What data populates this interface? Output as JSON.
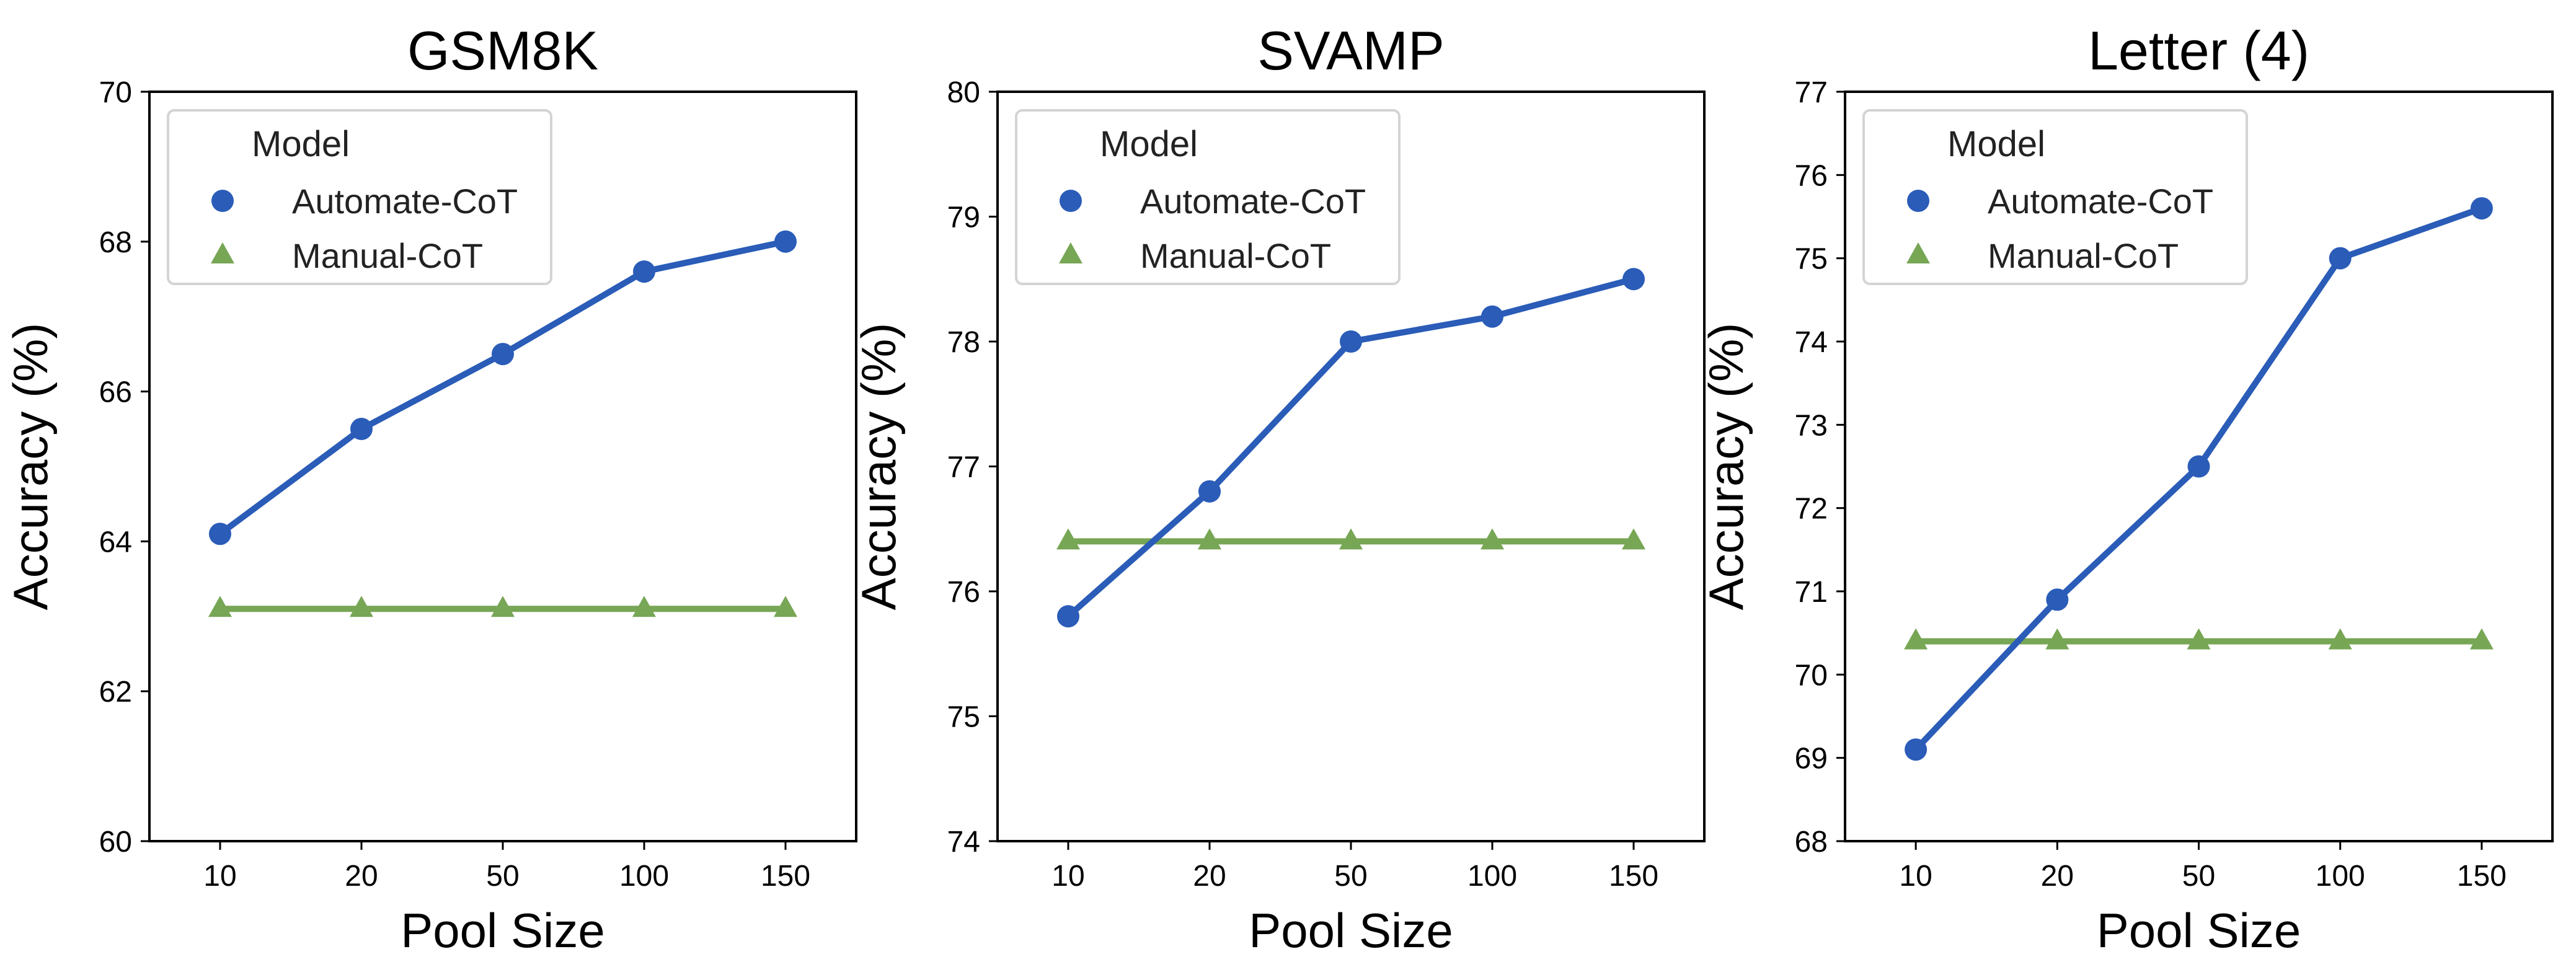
{
  "chart_data": [
    {
      "type": "line",
      "title": "GSM8K",
      "xlabel": "Pool Size",
      "ylabel": "Accuracy (%)",
      "categories": [
        "10",
        "20",
        "50",
        "100",
        "150"
      ],
      "ylim": [
        60,
        70
      ],
      "yticks": [
        60,
        62,
        64,
        66,
        68,
        70
      ],
      "legend": {
        "title": "Model",
        "position": "upper-left"
      },
      "series": [
        {
          "name": "Automate-CoT",
          "marker": "circle",
          "color": "#2a5cb8",
          "values": [
            64.1,
            65.5,
            66.5,
            67.6,
            68.0
          ]
        },
        {
          "name": "Manual-CoT",
          "marker": "triangle",
          "color": "#77a655",
          "values": [
            63.1,
            63.1,
            63.1,
            63.1,
            63.1
          ]
        }
      ]
    },
    {
      "type": "line",
      "title": "SVAMP",
      "xlabel": "Pool Size",
      "ylabel": "Accuracy (%)",
      "categories": [
        "10",
        "20",
        "50",
        "100",
        "150"
      ],
      "ylim": [
        74,
        80
      ],
      "yticks": [
        74,
        75,
        76,
        77,
        78,
        79,
        80
      ],
      "legend": {
        "title": "Model",
        "position": "upper-left"
      },
      "series": [
        {
          "name": "Automate-CoT",
          "marker": "circle",
          "color": "#2a5cb8",
          "values": [
            75.8,
            76.8,
            78.0,
            78.2,
            78.5
          ]
        },
        {
          "name": "Manual-CoT",
          "marker": "triangle",
          "color": "#77a655",
          "values": [
            76.4,
            76.4,
            76.4,
            76.4,
            76.4
          ]
        }
      ]
    },
    {
      "type": "line",
      "title": "Letter (4)",
      "xlabel": "Pool Size",
      "ylabel": "Accuracy (%)",
      "categories": [
        "10",
        "20",
        "50",
        "100",
        "150"
      ],
      "ylim": [
        68,
        77
      ],
      "yticks": [
        68,
        69,
        70,
        71,
        72,
        73,
        74,
        75,
        76,
        77
      ],
      "legend": {
        "title": "Model",
        "position": "upper-left"
      },
      "series": [
        {
          "name": "Automate-CoT",
          "marker": "circle",
          "color": "#2a5cb8",
          "values": [
            69.1,
            70.9,
            72.5,
            75.0,
            75.6
          ]
        },
        {
          "name": "Manual-CoT",
          "marker": "triangle",
          "color": "#77a655",
          "values": [
            70.4,
            70.4,
            70.4,
            70.4,
            70.4
          ]
        }
      ]
    }
  ]
}
